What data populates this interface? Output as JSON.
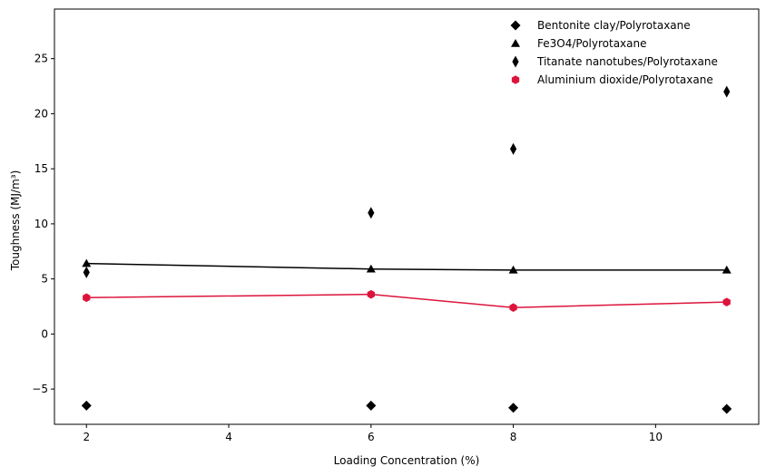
{
  "chart_data": {
    "type": "scatter",
    "title": "",
    "xlabel": "Loading Concentration (%)",
    "ylabel": "Toughness (MJ/m³)",
    "xlim": [
      1.55,
      11.45
    ],
    "ylim": [
      -8.2,
      29.5
    ],
    "xticks": [
      2,
      4,
      6,
      8,
      10
    ],
    "yticks": [
      -5,
      0,
      5,
      10,
      15,
      20,
      25
    ],
    "ytick_labels": [
      "−5",
      "0",
      "5",
      "10",
      "15",
      "20",
      "25"
    ],
    "grid": false,
    "legend_position": "top-right",
    "x": [
      2,
      6,
      8,
      11
    ],
    "series": [
      {
        "name": "Bentonite clay/Polyrotaxane",
        "marker": "diamond",
        "color": "#000000",
        "line": false,
        "values": [
          -6.5,
          -6.5,
          -6.7,
          -6.8
        ]
      },
      {
        "name": "Fe3O4/Polyrotaxane",
        "marker": "triangle",
        "color": "#000000",
        "line": true,
        "values": [
          6.4,
          5.9,
          5.8,
          5.8
        ]
      },
      {
        "name": "Titanate nanotubes/Polyrotaxane",
        "marker": "thin-diamond",
        "color": "#000000",
        "line": false,
        "values": [
          5.6,
          11.0,
          16.8,
          22.0
        ]
      },
      {
        "name": "Aluminium dioxide/Polyrotaxane",
        "marker": "hexagon",
        "color": "#dc143c",
        "line": true,
        "values": [
          3.3,
          3.6,
          2.4,
          2.9
        ]
      }
    ]
  }
}
